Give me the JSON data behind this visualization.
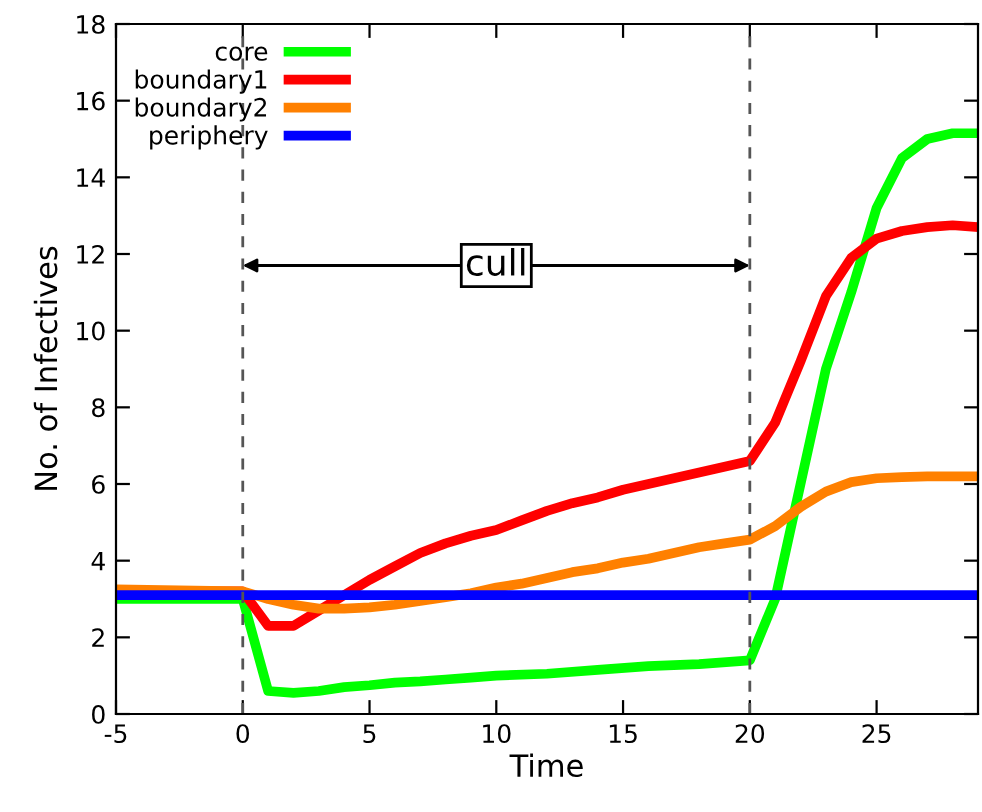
{
  "chart_data": {
    "type": "line",
    "xlabel": "Time",
    "ylabel": "No. of Infectives",
    "xlim": [
      -5,
      29
    ],
    "ylim": [
      0,
      18
    ],
    "xticks": [
      -5,
      0,
      5,
      10,
      15,
      20,
      25
    ],
    "yticks": [
      0,
      2,
      4,
      6,
      8,
      10,
      12,
      14,
      16,
      18
    ],
    "grid": false,
    "legend": "top left",
    "marker": "none",
    "line_style": "solid",
    "series": [
      {
        "name": "core",
        "color": "#00ff00",
        "x": [
          -5,
          0,
          1,
          2,
          3,
          4,
          5,
          6,
          7,
          8,
          9,
          10,
          12,
          14,
          16,
          18,
          20,
          21,
          22,
          23,
          24,
          25,
          26,
          27,
          28,
          29
        ],
        "values": [
          3.0,
          3.0,
          0.6,
          0.55,
          0.6,
          0.7,
          0.75,
          0.82,
          0.85,
          0.9,
          0.95,
          1.0,
          1.05,
          1.15,
          1.25,
          1.3,
          1.4,
          3.0,
          6.0,
          9.0,
          11.0,
          13.2,
          14.5,
          15.0,
          15.15,
          15.15
        ]
      },
      {
        "name": "boundary1",
        "color": "#ff0000",
        "x": [
          -5,
          0,
          1,
          2,
          3,
          4,
          5,
          6,
          7,
          8,
          9,
          10,
          11,
          12,
          13,
          14,
          15,
          16,
          17,
          18,
          19,
          20,
          21,
          22,
          23,
          24,
          25,
          26,
          27,
          28,
          29
        ],
        "values": [
          3.2,
          3.2,
          2.3,
          2.3,
          2.7,
          3.1,
          3.5,
          3.85,
          4.2,
          4.45,
          4.65,
          4.8,
          5.05,
          5.3,
          5.5,
          5.65,
          5.85,
          6.0,
          6.15,
          6.3,
          6.45,
          6.6,
          7.6,
          9.2,
          10.9,
          11.9,
          12.4,
          12.6,
          12.7,
          12.75,
          12.7
        ]
      },
      {
        "name": "boundary2",
        "color": "#ff8000",
        "x": [
          -5,
          0,
          1,
          2,
          3,
          4,
          5,
          6,
          7,
          8,
          9,
          10,
          11,
          12,
          13,
          14,
          15,
          16,
          17,
          18,
          19,
          20,
          21,
          22,
          23,
          24,
          25,
          26,
          27,
          28,
          29
        ],
        "values": [
          3.25,
          3.2,
          3.0,
          2.85,
          2.75,
          2.75,
          2.78,
          2.85,
          2.95,
          3.05,
          3.15,
          3.3,
          3.4,
          3.55,
          3.7,
          3.8,
          3.95,
          4.05,
          4.2,
          4.35,
          4.45,
          4.55,
          4.9,
          5.4,
          5.8,
          6.05,
          6.15,
          6.18,
          6.2,
          6.2,
          6.2
        ]
      },
      {
        "name": "periphery",
        "color": "#0000ff",
        "x": [
          -5,
          29
        ],
        "values": [
          3.1,
          3.1
        ]
      }
    ],
    "ref_lines": [
      {
        "axis": "x",
        "value": 0,
        "color": "#555555",
        "line_style": "dashed"
      },
      {
        "axis": "x",
        "value": 20,
        "color": "#555555",
        "line_style": "dashed"
      }
    ],
    "annotations": [
      {
        "text": "cull",
        "x": 10,
        "y": 11.7
      }
    ]
  }
}
